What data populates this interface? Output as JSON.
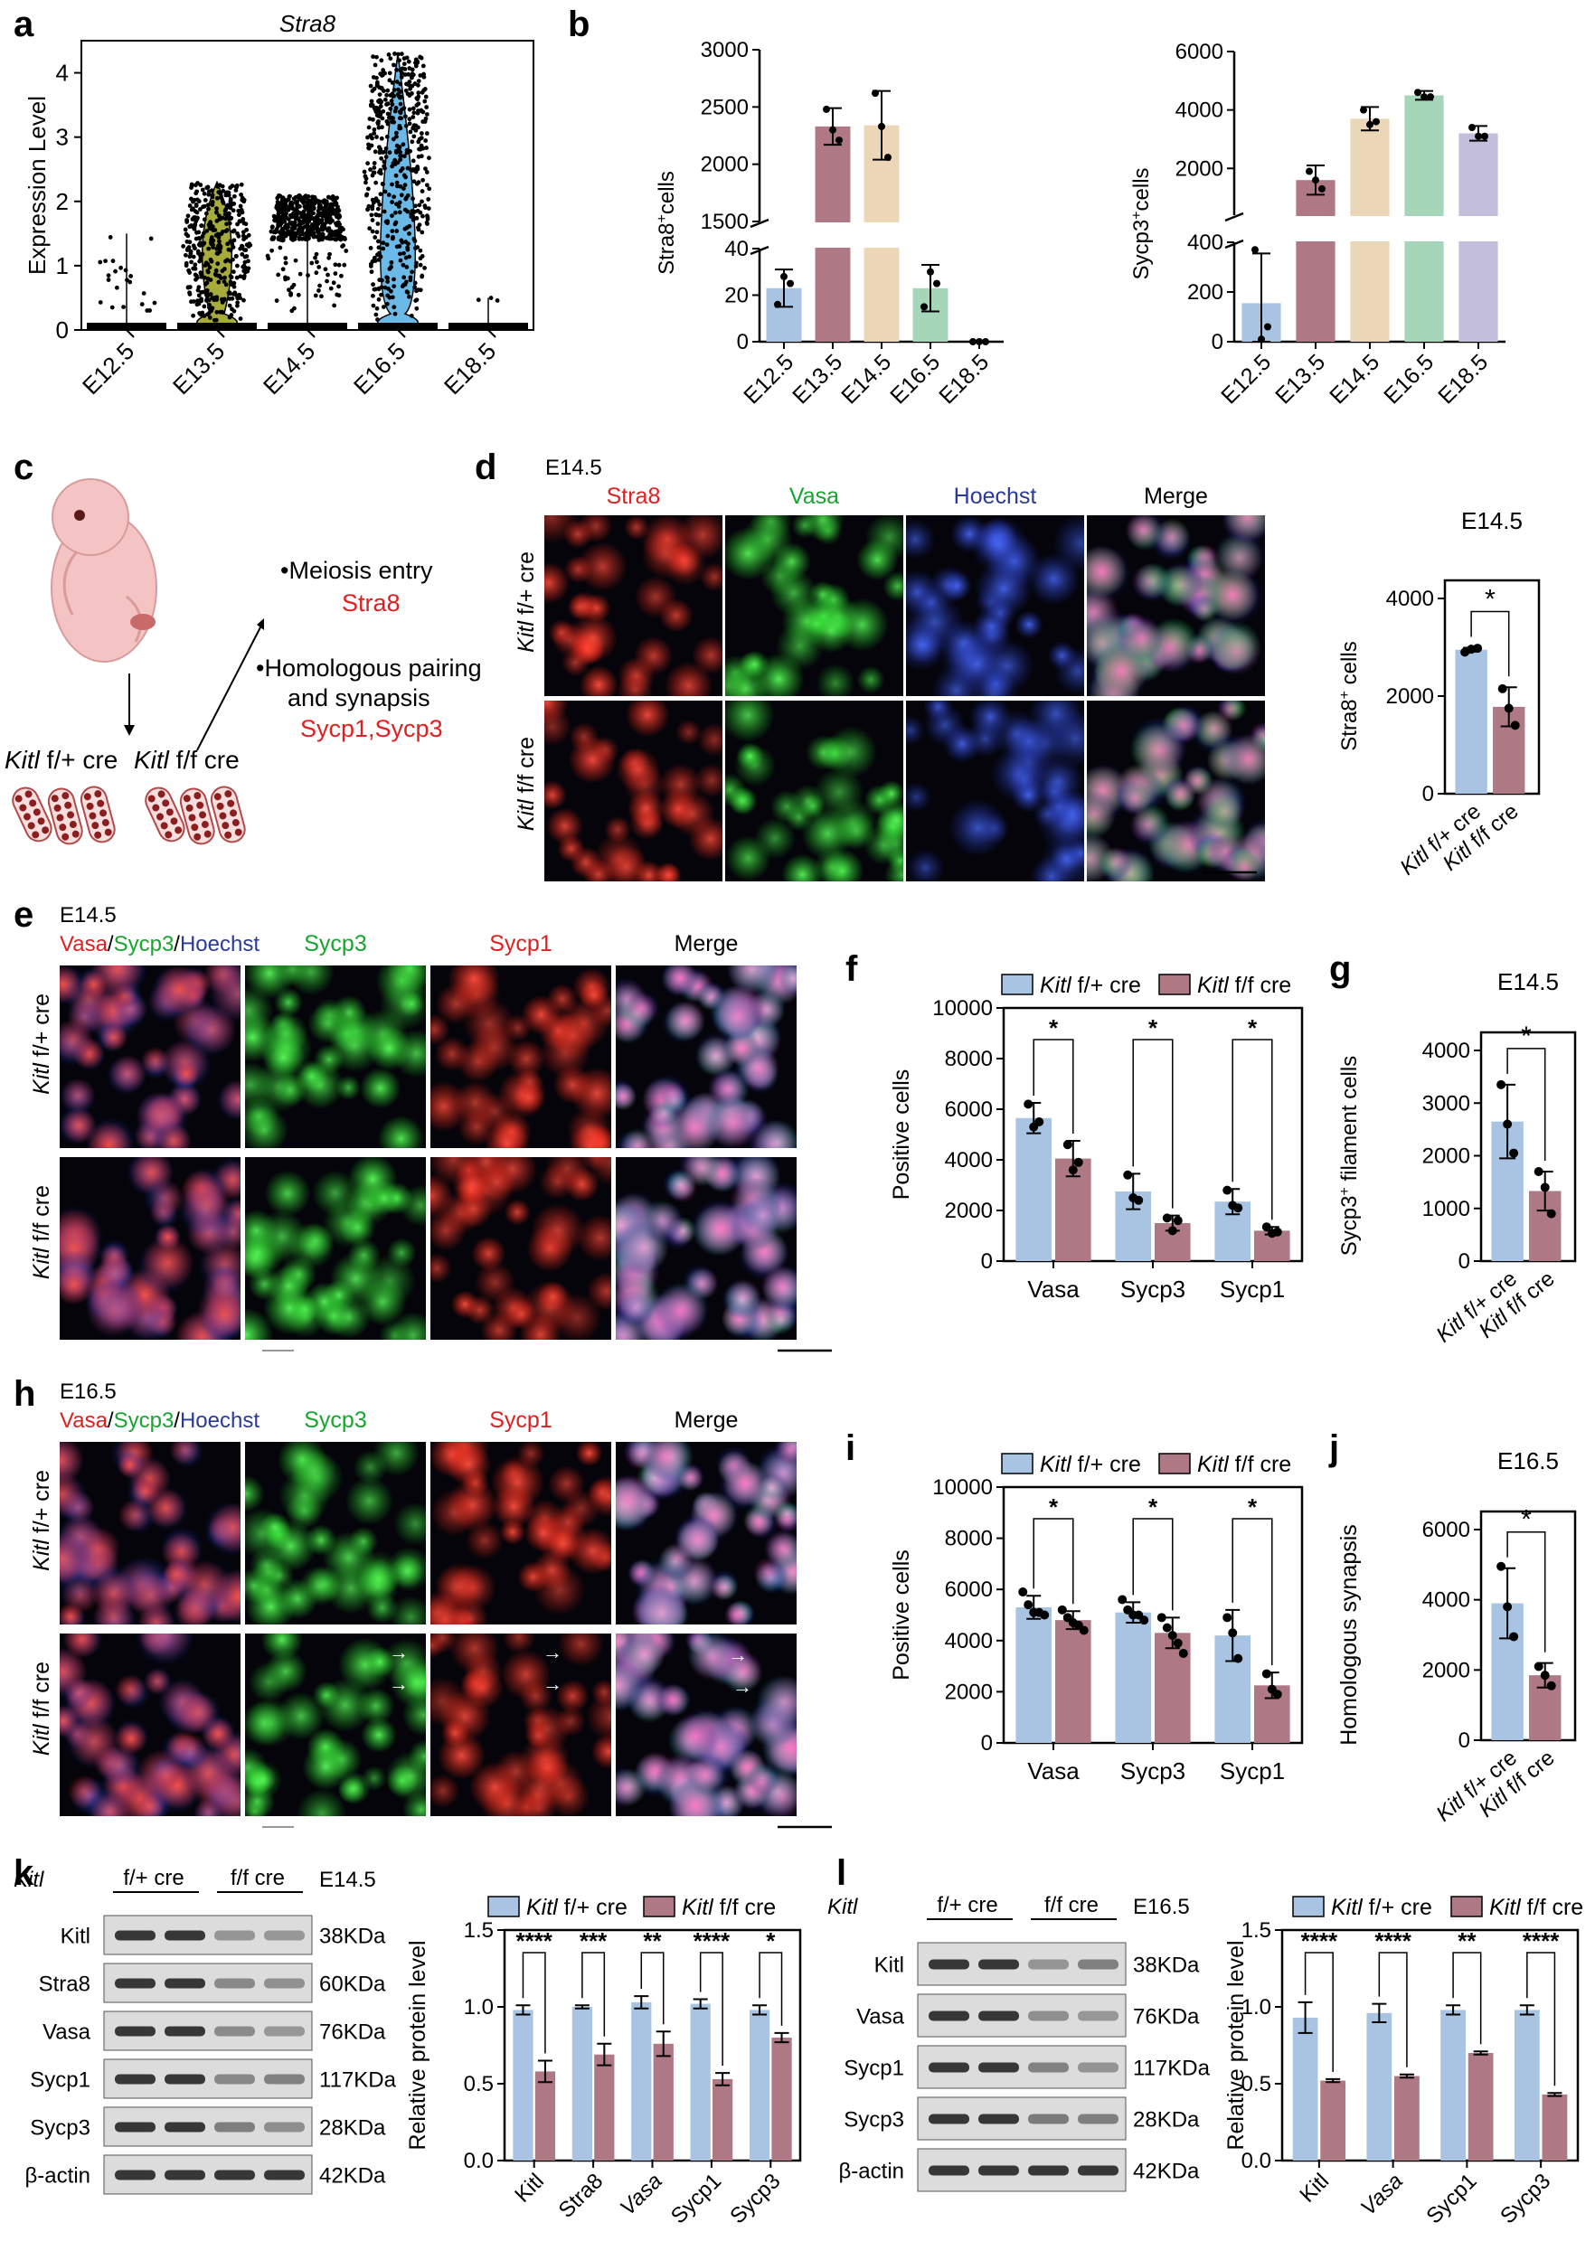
{
  "colors": {
    "blue": "#a9c4e3",
    "maroon": "#ae7884",
    "peach": "#ecd6b8",
    "green": "#a6d6b9",
    "lavender": "#c2bedb",
    "olive": "#a7ab3b",
    "violet_blue": "#6bb9e6",
    "red_text": "#e02020",
    "green_text": "#17a52f",
    "blue_text": "#2a3a9a",
    "pink": "#f2c8c8"
  },
  "panels": {
    "a": "a",
    "b": "b",
    "c": "c",
    "d": "d",
    "e": "e",
    "f": "f",
    "g": "g",
    "h": "h",
    "i": "i",
    "j": "j",
    "k": "k",
    "l": "l"
  },
  "common": {
    "kitl": "Kitl",
    "f_plus_cre": " f/+ cre",
    "f_f_cre": " f/f cre",
    "ff_cre_short": "f/f cre",
    "fplus_cre_short": "f/+ cre",
    "asterisk": "*"
  },
  "panel_c": {
    "meiosis_entry": "•Meiosis entry",
    "stra8": "Stra8",
    "homologous_1": "•Homologous pairing",
    "homologous_2": "and synapsis",
    "sycp13": "Sycp1,Sycp3",
    "geno_left": "Kitl",
    "geno_left_rest": " f/+ cre",
    "geno_right": "Kitl",
    "geno_right_rest": " f/f cre"
  },
  "panel_d": {
    "stage": "E14.5",
    "cols": [
      "Stra8",
      "Vasa",
      "Hoechst",
      "Merge"
    ],
    "rows": [
      "Kitl f/+ cre",
      "Kitl f/f cre"
    ],
    "row_labels": [
      {
        "gene": "Kitl",
        "rest": " f/+ cre"
      },
      {
        "gene": "Kitl",
        "rest": " f/f cre"
      }
    ]
  },
  "panel_e": {
    "stage": "E14.5",
    "combo": {
      "a": "Vasa",
      "b": "/",
      "c": "Sycp3",
      "d": "/",
      "e": "Hoechst"
    },
    "cols": [
      "Sycp3",
      "Sycp1",
      "Merge"
    ],
    "row_labels": [
      {
        "gene": "Kitl",
        "rest": " f/+ cre"
      },
      {
        "gene": "Kitl",
        "rest": " f/f cre"
      }
    ]
  },
  "panel_h": {
    "stage": "E16.5",
    "combo": {
      "a": "Vasa",
      "b": "/",
      "c": "Sycp3",
      "d": "/",
      "e": "Hoechst"
    },
    "cols": [
      "Sycp3",
      "Sycp1",
      "Merge"
    ],
    "row_labels": [
      {
        "gene": "Kitl",
        "rest": " f/+ cre"
      },
      {
        "gene": "Kitl",
        "rest": " f/f cre"
      }
    ]
  },
  "panel_k": {
    "header": {
      "kitl": "Kitl",
      "fplus": "f/+ cre",
      "ff": "f/f cre",
      "stage": "E14.5"
    },
    "blots": [
      {
        "name": "Kitl",
        "size": "38KDa"
      },
      {
        "name": "Stra8",
        "size": "60KDa"
      },
      {
        "name": "Vasa",
        "size": "76KDa"
      },
      {
        "name": "Sycp1",
        "size": "117KDa"
      },
      {
        "name": "Sycp3",
        "size": "28KDa"
      },
      {
        "name": "β-actin",
        "size": "42KDa"
      }
    ]
  },
  "panel_l": {
    "header": {
      "kitl": "Kitl",
      "fplus": "f/+ cre",
      "ff": "f/f cre",
      "stage": "E16.5"
    },
    "blots": [
      {
        "name": "Kitl",
        "size": "38KDa"
      },
      {
        "name": "Vasa",
        "size": "76KDa"
      },
      {
        "name": "Sycp1",
        "size": "117KDa"
      },
      {
        "name": "Sycp3",
        "size": "28KDa"
      },
      {
        "name": "β-actin",
        "size": "42KDa"
      }
    ]
  },
  "chart_data": [
    {
      "id": "a",
      "type": "violin",
      "title": "Stra8",
      "ylabel": "Expression Level",
      "ylim": [
        0,
        4.5
      ],
      "yticks": [
        0,
        1,
        2,
        3,
        4
      ],
      "categories": [
        "E12.5",
        "E13.5",
        "E14.5",
        "E16.5",
        "E18.5"
      ],
      "max_values": [
        1.5,
        2.3,
        2.1,
        4.3,
        0.5
      ]
    },
    {
      "id": "b1",
      "type": "bar",
      "ylabel_main": "Stra8",
      "ylabel_sup": "+",
      "ylabel_rest": "cells",
      "categories": [
        "E12.5",
        "E13.5",
        "E14.5",
        "E16.5",
        "E18.5"
      ],
      "values": [
        23,
        2330,
        2340,
        23,
        0
      ],
      "sd": [
        8,
        160,
        300,
        10,
        0
      ],
      "points": [
        [
          16,
          28,
          25
        ],
        [
          2480,
          2300,
          2210
        ],
        [
          2620,
          2330,
          2060
        ],
        [
          15,
          30,
          25
        ],
        [
          0,
          0,
          0
        ]
      ],
      "axis_break": {
        "lower": [
          0,
          40
        ],
        "upper": [
          1500,
          3000
        ]
      },
      "yticks_lower": [
        0,
        20,
        40
      ],
      "yticks_upper": [
        1500,
        2000,
        2500,
        3000
      ]
    },
    {
      "id": "b2",
      "type": "bar",
      "ylabel_main": "Sycp3",
      "ylabel_sup": "+",
      "ylabel_rest": "cells",
      "categories": [
        "E12.5",
        "E13.5",
        "E14.5",
        "E16.5",
        "E18.5"
      ],
      "values": [
        155,
        1600,
        3700,
        4500,
        3200
      ],
      "sd": [
        200,
        500,
        400,
        150,
        250
      ],
      "points": [
        [
          370,
          10,
          60
        ],
        [
          1900,
          1600,
          1300
        ],
        [
          4000,
          3500,
          3600
        ],
        [
          4600,
          4450,
          4450
        ],
        [
          3400,
          3100,
          3100
        ]
      ],
      "axis_break": {
        "lower": [
          0,
          400
        ],
        "upper": [
          400,
          6000
        ]
      },
      "yticks_lower": [
        0,
        200,
        400
      ],
      "yticks_upper": [
        2000,
        4000,
        6000
      ]
    },
    {
      "id": "d",
      "type": "bar",
      "title": "E14.5",
      "ylabel_main": "Stra8",
      "ylabel_sup": "+",
      "ylabel_rest": " cells",
      "ylim": [
        0,
        4000
      ],
      "yticks": [
        0,
        2000,
        4000
      ],
      "categories": [
        "Kitl f/+ cre",
        "Kitl f/f cre"
      ],
      "values": [
        2950,
        1780
      ],
      "sd": [
        40,
        400
      ],
      "points": [
        [
          2900,
          2960,
          2980
        ],
        [
          2150,
          1750,
          1400
        ]
      ],
      "significance": "*"
    },
    {
      "id": "f",
      "type": "bar",
      "legend": [
        "Kitl f/+ cre",
        "Kitl f/f cre"
      ],
      "ylabel": "Positive cells",
      "ylim": [
        0,
        10000
      ],
      "yticks": [
        0,
        2000,
        4000,
        6000,
        8000,
        10000
      ],
      "categories": [
        "Vasa",
        "Sycp3",
        "Sycp1"
      ],
      "series": [
        {
          "name": "Kitl f/+ cre",
          "values": [
            5650,
            2750,
            2350
          ],
          "sd": [
            600,
            700,
            500
          ],
          "points": [
            [
              6200,
              5300,
              5500
            ],
            [
              3400,
              2500,
              2400
            ],
            [
              2800,
              2200,
              2100
            ]
          ]
        },
        {
          "name": "Kitl f/f cre",
          "values": [
            4050,
            1500,
            1200
          ],
          "sd": [
            700,
            300,
            150
          ],
          "points": [
            [
              4600,
              3600,
              3900
            ],
            [
              1700,
              1200,
              1600
            ],
            [
              1350,
              1100,
              1150
            ]
          ]
        }
      ],
      "significance": [
        "*",
        "*",
        "*"
      ]
    },
    {
      "id": "g",
      "type": "bar",
      "title": "E14.5",
      "ylabel_main": "Sycp3",
      "ylabel_sup": "+",
      "ylabel_rest": " filament cells",
      "ylim": [
        0,
        4000
      ],
      "yticks": [
        0,
        1000,
        2000,
        3000,
        4000
      ],
      "categories": [
        "Kitl f/+ cre",
        "Kitl f/f cre"
      ],
      "values": [
        2650,
        1330
      ],
      "sd": [
        700,
        370
      ],
      "points": [
        [
          3350,
          2600,
          2050
        ],
        [
          1700,
          1400,
          900
        ]
      ],
      "significance": "*"
    },
    {
      "id": "i",
      "type": "bar",
      "legend": [
        "Kitl f/+ cre",
        "Kitl f/f cre"
      ],
      "ylabel": "Positive cells",
      "ylim": [
        0,
        10000
      ],
      "yticks": [
        0,
        2000,
        4000,
        6000,
        8000,
        10000
      ],
      "categories": [
        "Vasa",
        "Sycp3",
        "Sycp1"
      ],
      "series": [
        {
          "name": "Kitl f/+ cre",
          "values": [
            5300,
            5100,
            4200
          ],
          "sd": [
            450,
            400,
            1000
          ],
          "points": [
            [
              5900,
              5400,
              5100,
              5100,
              5000
            ],
            [
              5600,
              5200,
              5000,
              5000,
              4800
            ],
            [
              4900,
              4300,
              3300
            ]
          ]
        },
        {
          "name": "Kitl f/f cre",
          "values": [
            4800,
            4300,
            2250
          ],
          "sd": [
            350,
            600,
            500
          ],
          "points": [
            [
              5200,
              4900,
              4700,
              4600,
              4400
            ],
            [
              4900,
              4500,
              4200,
              3900,
              3500
            ],
            [
              2700,
              2100,
              1900
            ]
          ]
        }
      ],
      "significance": [
        "*",
        "*",
        "*"
      ]
    },
    {
      "id": "j",
      "type": "bar",
      "title": "E16.5",
      "ylabel": "Homologous synapsis",
      "ylim": [
        0,
        6000
      ],
      "yticks": [
        0,
        2000,
        4000,
        6000
      ],
      "categories": [
        "Kitl f/+ cre",
        "Kitl f/f cre"
      ],
      "values": [
        3900,
        1850
      ],
      "sd": [
        1000,
        350
      ],
      "points": [
        [
          4950,
          3800,
          2950
        ],
        [
          2100,
          1850,
          1550
        ]
      ],
      "significance": "*"
    },
    {
      "id": "k",
      "type": "bar",
      "legend": [
        "Kitl f/+ cre",
        "Kitl f/f cre"
      ],
      "ylabel": "Relative protein level",
      "ylim": [
        0,
        1.5
      ],
      "yticks": [
        0.0,
        0.5,
        1.0,
        1.5
      ],
      "categories": [
        "Kitl",
        "Stra8",
        "Vasa",
        "Sycp1",
        "Sycp3"
      ],
      "series": [
        {
          "name": "Kitl f/+ cre",
          "values": [
            0.98,
            1.0,
            1.03,
            1.02,
            0.98
          ],
          "sd": [
            0.03,
            0.01,
            0.04,
            0.03,
            0.03
          ]
        },
        {
          "name": "Kitl f/f cre",
          "values": [
            0.58,
            0.69,
            0.76,
            0.53,
            0.8
          ],
          "sd": [
            0.07,
            0.07,
            0.08,
            0.04,
            0.03
          ]
        }
      ],
      "significance": [
        "****",
        "***",
        "**",
        "****",
        "*"
      ]
    },
    {
      "id": "l",
      "type": "bar",
      "legend": [
        "Kitl f/+ cre",
        "Kitl f/f cre"
      ],
      "ylabel": "Relative protein level",
      "ylim": [
        0,
        1.5
      ],
      "yticks": [
        0.0,
        0.5,
        1.0,
        1.5
      ],
      "categories": [
        "Kitl",
        "Vasa",
        "Sycp1",
        "Sycp3"
      ],
      "series": [
        {
          "name": "Kitl f/+ cre",
          "values": [
            0.93,
            0.96,
            0.98,
            0.98
          ],
          "sd": [
            0.1,
            0.06,
            0.03,
            0.03
          ]
        },
        {
          "name": "Kitl f/f cre",
          "values": [
            0.52,
            0.55,
            0.7,
            0.43
          ],
          "sd": [
            0.01,
            0.01,
            0.01,
            0.01
          ]
        }
      ],
      "significance": [
        "****",
        "****",
        "**",
        "****"
      ]
    }
  ]
}
